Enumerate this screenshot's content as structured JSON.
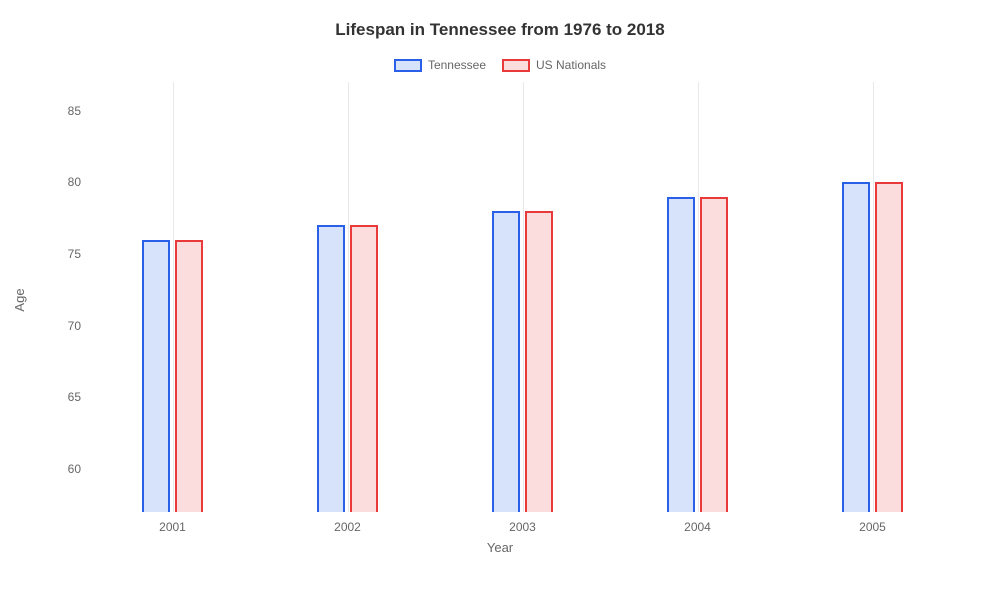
{
  "chart": {
    "type": "bar",
    "title": "Lifespan in Tennessee from 1976 to 2018",
    "title_fontsize": 17,
    "xlabel": "Year",
    "ylabel": "Age",
    "label_fontsize": 13,
    "tick_fontsize": 12,
    "background_color": "#ffffff",
    "grid_color": "#e8e8e8",
    "categories": [
      "2001",
      "2002",
      "2003",
      "2004",
      "2005"
    ],
    "y_ticks": [
      60,
      65,
      70,
      75,
      80,
      85
    ],
    "ylim_min": 57,
    "ylim_max": 87,
    "group_positions_pct": [
      10,
      30,
      50,
      70,
      90
    ],
    "bar_width_pct": 3.2,
    "bar_gap_pct": 0.6,
    "series": [
      {
        "name": "Tennessee",
        "label": "Tennessee",
        "fill": "#d6e3fb",
        "stroke": "#2a5fe8",
        "values": [
          76,
          77,
          78,
          79,
          80
        ]
      },
      {
        "name": "US Nationals",
        "label": "US Nationals",
        "fill": "#fbdddd",
        "stroke": "#e83a3a",
        "values": [
          76,
          77,
          78,
          79,
          80
        ]
      }
    ]
  }
}
